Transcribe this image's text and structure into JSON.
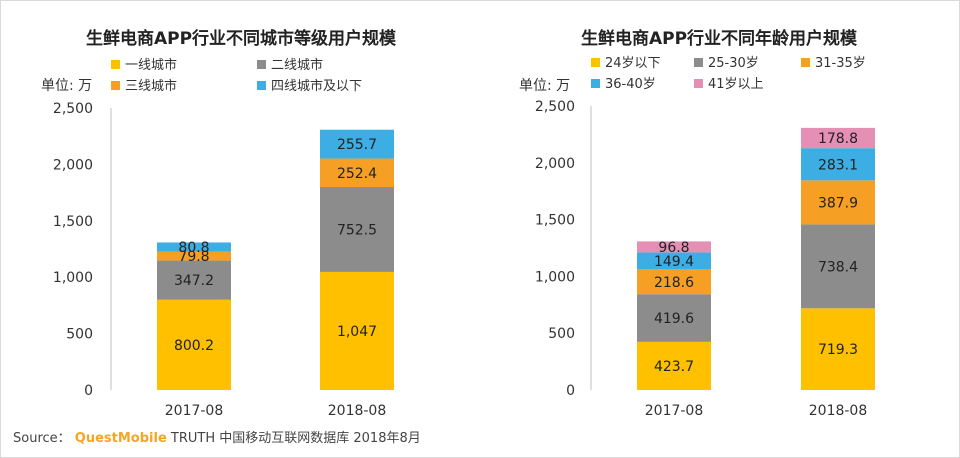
{
  "source": {
    "label": "Source：",
    "brand": "QuestMobile",
    "text": "TRUTH 中国移动互联网数据库 2018年8月"
  },
  "chart_data": [
    {
      "type": "bar",
      "stacked": true,
      "title": "生鲜电商APP行业不同城市等级用户规模",
      "unit_label": "单位: 万",
      "ylim": [
        0,
        2500
      ],
      "yticks": [
        0,
        500,
        1000,
        1500,
        2000,
        2500
      ],
      "ytick_labels": [
        "0",
        "500",
        "1,000",
        "1,500",
        "2,000",
        "2,500"
      ],
      "categories": [
        "2017-08",
        "2018-08"
      ],
      "legend_position": "top",
      "series": [
        {
          "name": "一线城市",
          "color": "#FFC000",
          "values": [
            800.2,
            1047
          ],
          "labels": [
            "800.2",
            "1,047"
          ]
        },
        {
          "name": "二线城市",
          "color": "#8C8C8C",
          "values": [
            347.2,
            752.5
          ],
          "labels": [
            "347.2",
            "752.5"
          ]
        },
        {
          "name": "三线城市",
          "color": "#F5A025",
          "values": [
            79.8,
            252.4
          ],
          "labels": [
            "79.8",
            "252.4"
          ]
        },
        {
          "name": "四线城市及以下",
          "color": "#3CAEE3",
          "values": [
            80.8,
            255.7
          ],
          "labels": [
            "80.8",
            "255.7"
          ]
        }
      ]
    },
    {
      "type": "bar",
      "stacked": true,
      "title": "生鲜电商APP行业不同年龄用户规模",
      "unit_label": "单位: 万",
      "ylim": [
        0,
        2500
      ],
      "yticks": [
        0,
        500,
        1000,
        1500,
        2000,
        2500
      ],
      "ytick_labels": [
        "0",
        "500",
        "1,000",
        "1,500",
        "2,000",
        "2,500"
      ],
      "categories": [
        "2017-08",
        "2018-08"
      ],
      "legend_position": "top",
      "series": [
        {
          "name": "24岁以下",
          "color": "#FFC000",
          "values": [
            423.7,
            719.3
          ],
          "labels": [
            "423.7",
            "719.3"
          ]
        },
        {
          "name": "25-30岁",
          "color": "#8C8C8C",
          "values": [
            419.6,
            738.4
          ],
          "labels": [
            "419.6",
            "738.4"
          ]
        },
        {
          "name": "31-35岁",
          "color": "#F5A025",
          "values": [
            218.6,
            387.9
          ],
          "labels": [
            "218.6",
            "387.9"
          ]
        },
        {
          "name": "36-40岁",
          "color": "#3CAEE3",
          "values": [
            149.4,
            283.1
          ],
          "labels": [
            "149.4",
            "283.1"
          ]
        },
        {
          "name": "41岁以上",
          "color": "#E58FB5",
          "values": [
            96.8,
            178.8
          ],
          "labels": [
            "96.8",
            "178.8"
          ]
        }
      ]
    }
  ]
}
